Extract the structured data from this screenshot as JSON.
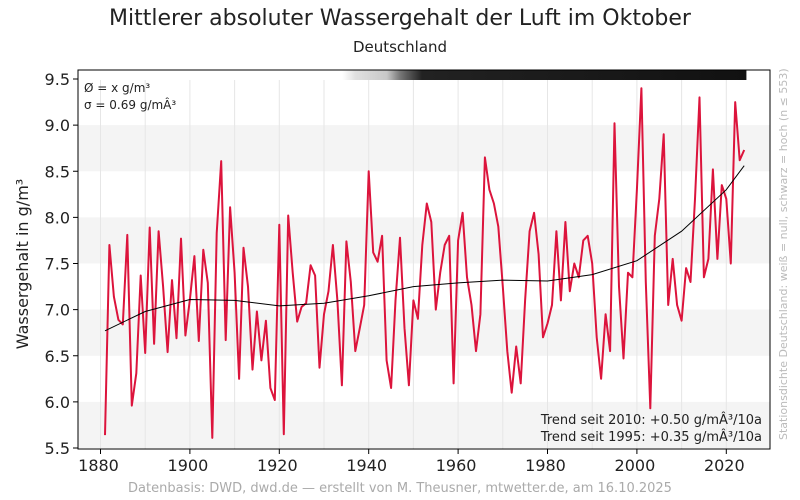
{
  "chart_data": {
    "type": "line",
    "title": "Mittlerer absoluter Wassergehalt der Luft im Oktober",
    "subtitle": "Deutschland",
    "ylabel": "Wassergehalt in g/m³",
    "xlabel": "",
    "xlim": [
      1876,
      2030
    ],
    "ylim": [
      5.5,
      9.5
    ],
    "xticks": [
      1880,
      1900,
      1920,
      1940,
      1960,
      1980,
      2000,
      2020
    ],
    "yticks": [
      "5.5",
      "6.0",
      "6.5",
      "7.0",
      "7.5",
      "8.0",
      "8.5",
      "9.0",
      "9.5"
    ],
    "grid": true,
    "series_color": "#dc143c",
    "trend_color": "#000000",
    "x_start": 1881,
    "values": [
      5.64,
      7.7,
      7.14,
      6.89,
      6.84,
      7.81,
      5.96,
      6.31,
      7.37,
      6.53,
      7.89,
      6.63,
      7.85,
      7.25,
      6.54,
      7.32,
      6.69,
      7.77,
      6.72,
      7.11,
      7.58,
      6.66,
      7.65,
      7.29,
      5.61,
      7.83,
      8.61,
      6.67,
      8.11,
      7.4,
      6.25,
      7.67,
      7.25,
      6.35,
      6.98,
      6.45,
      6.88,
      6.15,
      6.02,
      7.92,
      5.65,
      8.02,
      7.4,
      6.87,
      7.03,
      7.07,
      7.48,
      7.37,
      6.37,
      6.95,
      7.2,
      7.7,
      7.1,
      6.18,
      7.74,
      7.3,
      6.55,
      6.8,
      7.05,
      8.5,
      7.62,
      7.52,
      7.8,
      6.45,
      6.15,
      7.1,
      7.78,
      6.8,
      6.18,
      7.1,
      6.9,
      7.7,
      8.15,
      7.95,
      7.0,
      7.4,
      7.7,
      7.8,
      6.2,
      7.75,
      8.05,
      7.35,
      7.05,
      6.55,
      6.95,
      8.65,
      8.3,
      8.15,
      7.9,
      7.25,
      6.55,
      6.1,
      6.6,
      6.2,
      7.1,
      7.85,
      8.05,
      7.6,
      6.7,
      6.85,
      7.05,
      7.85,
      7.1,
      7.95,
      7.2,
      7.5,
      7.35,
      7.75,
      7.8,
      7.5,
      6.7,
      6.25,
      6.95,
      6.55,
      9.02,
      7.25,
      6.47,
      7.4,
      7.35,
      8.3,
      9.4,
      7.3,
      5.93,
      7.8,
      8.2,
      8.9,
      7.05,
      7.55,
      7.05,
      6.88,
      7.45,
      7.3,
      8.2,
      9.3,
      7.35,
      7.55,
      8.52,
      7.55,
      8.35,
      8.2,
      7.5,
      9.25,
      8.62,
      8.73
    ],
    "trend": {
      "x": [
        1881,
        1890,
        1900,
        1910,
        1920,
        1930,
        1940,
        1950,
        1960,
        1970,
        1980,
        1990,
        2000,
        2010,
        2020,
        2024
      ],
      "y": [
        6.77,
        6.98,
        7.11,
        7.1,
        7.04,
        7.07,
        7.15,
        7.25,
        7.29,
        7.32,
        7.31,
        7.38,
        7.53,
        7.85,
        8.3,
        8.56
      ]
    },
    "annotations": {
      "mean": "Ø = x g/m³",
      "sigma": "σ = 0.69 g/mÂ³",
      "trend_2010": "Trend seit 2010: +0.50 g/mÂ³/10a",
      "trend_1995": "Trend seit 1995: +0.35 g/mÂ³/10a",
      "station_density": "Stationsdichte Deutschland: weiß = null, schwarz = hoch (n ≤ 553)"
    },
    "station_density_bar": {
      "white_until": 1934,
      "grey_from": 1934,
      "black_from": 1952,
      "end": 2024
    }
  },
  "footer": "Datenbasis: DWD, dwd.de — erstellt von M. Theusner, mtwetter.de, am 16.10.2025"
}
